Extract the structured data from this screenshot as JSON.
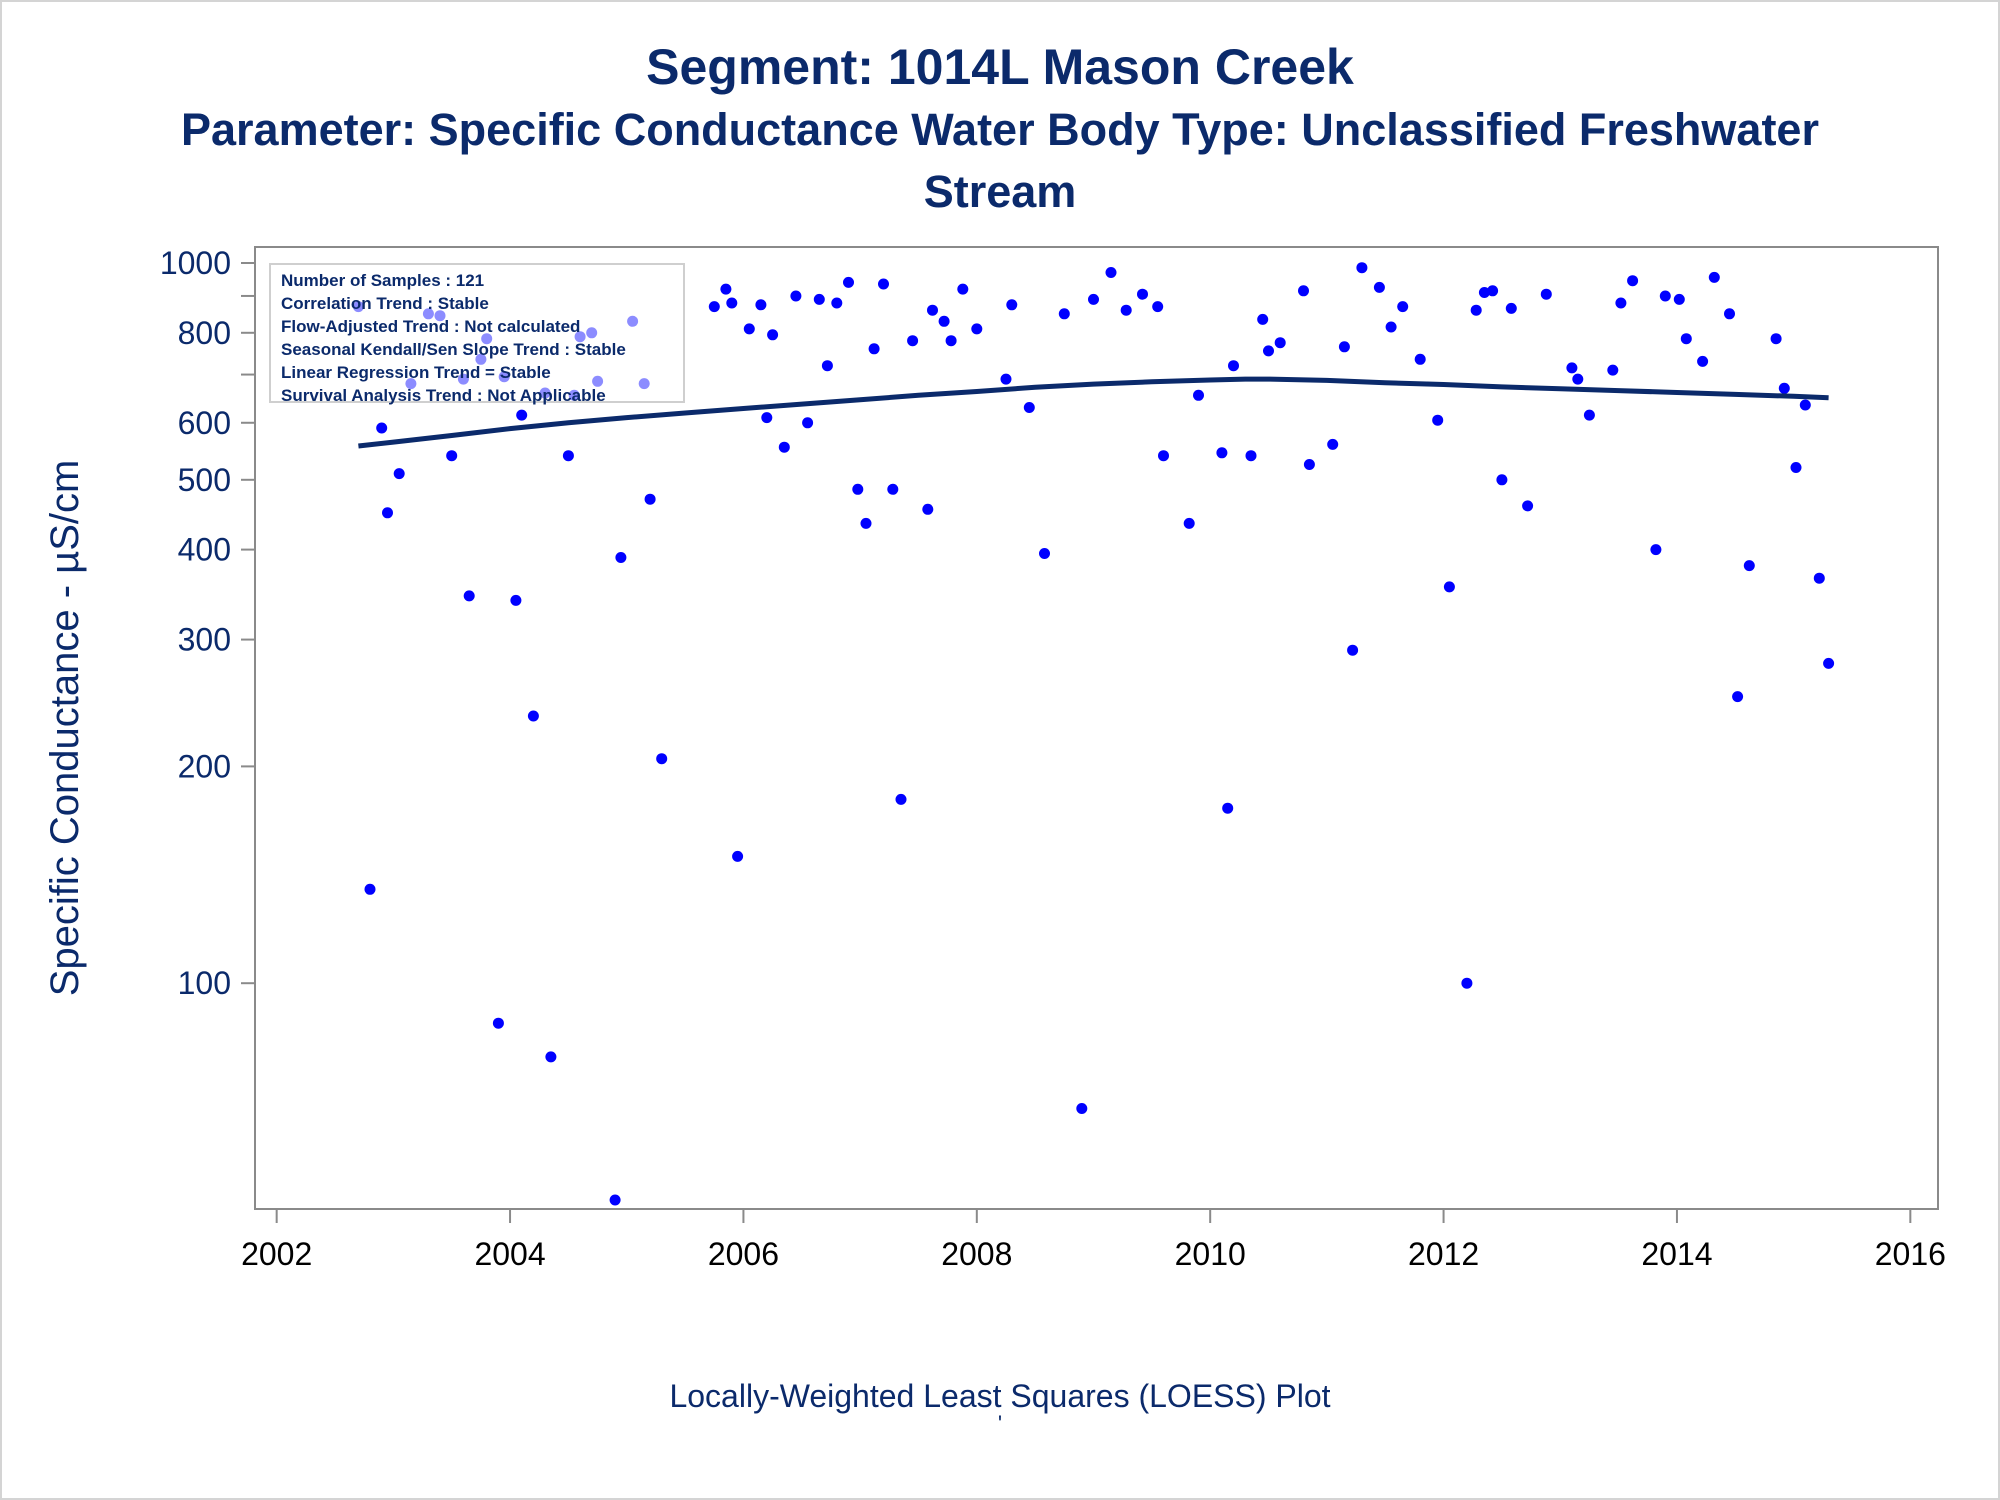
{
  "title": {
    "line1": "Segment: 1014L  Mason Creek",
    "line2": "Parameter: Specific Conductance   Water Body Type: Unclassified Freshwater",
    "line3": "Stream"
  },
  "footnote": "Locally-Weighted Least Squares (LOESS) Plot",
  "footnote_mark": "'",
  "stats_box": {
    "lines": [
      "Number of Samples : 121",
      "Correlation Trend : Stable",
      "Flow-Adjusted Trend : Not calculated",
      "Seasonal Kendall/Sen Slope Trend : Stable",
      "Linear Regression Trend = Stable",
      "Survival Analysis Trend : Not Applicable"
    ]
  },
  "colors": {
    "text": "#0b2a6b",
    "points": "#0000ff",
    "loess": "#0b2a6b",
    "axis": "#8a8a8a"
  },
  "chart_data": {
    "type": "scatter",
    "ylabel": "Specific Conductance -  µS/cm",
    "xlabel": "",
    "y_scale": "log",
    "xlim": [
      2001.9,
      2016.1
    ],
    "ylim": [
      50,
      1000
    ],
    "x_ticks": [
      2002,
      2004,
      2006,
      2008,
      2010,
      2012,
      2014,
      2016
    ],
    "x_tick_labels": [
      "2002",
      "2004",
      "2006",
      "2008",
      "2010",
      "2012",
      "2014",
      "2016"
    ],
    "y_ticks": [
      100,
      200,
      300,
      400,
      500,
      600,
      800,
      1000
    ],
    "y_tick_labels": [
      "100",
      "200",
      "300",
      "400",
      "500",
      "600",
      "800",
      "1000"
    ],
    "y_minor_ticks": [
      700,
      900
    ],
    "grid": false,
    "legend": "none",
    "points": [
      [
        2002.7,
        870
      ],
      [
        2002.8,
        135
      ],
      [
        2002.9,
        590
      ],
      [
        2002.95,
        450
      ],
      [
        2003.05,
        510
      ],
      [
        2003.15,
        680
      ],
      [
        2003.3,
        850
      ],
      [
        2003.4,
        845
      ],
      [
        2003.5,
        540
      ],
      [
        2003.6,
        690
      ],
      [
        2003.65,
        345
      ],
      [
        2003.75,
        735
      ],
      [
        2003.8,
        785
      ],
      [
        2003.9,
        88
      ],
      [
        2003.95,
        695
      ],
      [
        2004.05,
        340
      ],
      [
        2004.1,
        615
      ],
      [
        2004.2,
        235
      ],
      [
        2004.3,
        660
      ],
      [
        2004.35,
        79
      ],
      [
        2004.5,
        540
      ],
      [
        2004.55,
        655
      ],
      [
        2004.6,
        790
      ],
      [
        2004.7,
        800
      ],
      [
        2004.75,
        685
      ],
      [
        2004.9,
        50
      ],
      [
        2004.95,
        390
      ],
      [
        2005.05,
        830
      ],
      [
        2005.15,
        680
      ],
      [
        2005.2,
        470
      ],
      [
        2005.3,
        205
      ],
      [
        2005.75,
        870
      ],
      [
        2005.85,
        920
      ],
      [
        2005.9,
        880
      ],
      [
        2005.95,
        150
      ],
      [
        2006.05,
        810
      ],
      [
        2006.15,
        875
      ],
      [
        2006.2,
        610
      ],
      [
        2006.25,
        795
      ],
      [
        2006.35,
        555
      ],
      [
        2006.45,
        900
      ],
      [
        2006.55,
        600
      ],
      [
        2006.65,
        890
      ],
      [
        2006.72,
        720
      ],
      [
        2006.8,
        880
      ],
      [
        2006.9,
        940
      ],
      [
        2006.98,
        485
      ],
      [
        2007.05,
        435
      ],
      [
        2007.12,
        760
      ],
      [
        2007.2,
        935
      ],
      [
        2007.28,
        485
      ],
      [
        2007.35,
        180
      ],
      [
        2007.45,
        780
      ],
      [
        2007.58,
        455
      ],
      [
        2007.62,
        860
      ],
      [
        2007.72,
        830
      ],
      [
        2007.78,
        780
      ],
      [
        2007.88,
        920
      ],
      [
        2008.0,
        810
      ],
      [
        2008.25,
        690
      ],
      [
        2008.3,
        875
      ],
      [
        2008.45,
        630
      ],
      [
        2008.58,
        395
      ],
      [
        2008.75,
        850
      ],
      [
        2008.9,
        67
      ],
      [
        2009.0,
        890
      ],
      [
        2009.15,
        970
      ],
      [
        2009.28,
        860
      ],
      [
        2009.42,
        905
      ],
      [
        2009.55,
        870
      ],
      [
        2009.6,
        540
      ],
      [
        2009.82,
        435
      ],
      [
        2009.9,
        655
      ],
      [
        2010.1,
        545
      ],
      [
        2010.15,
        175
      ],
      [
        2010.2,
        720
      ],
      [
        2010.35,
        540
      ],
      [
        2010.45,
        835
      ],
      [
        2010.5,
        755
      ],
      [
        2010.6,
        775
      ],
      [
        2010.8,
        915
      ],
      [
        2010.85,
        525
      ],
      [
        2011.05,
        560
      ],
      [
        2011.15,
        765
      ],
      [
        2011.22,
        290
      ],
      [
        2011.3,
        985
      ],
      [
        2011.45,
        925
      ],
      [
        2011.55,
        815
      ],
      [
        2011.65,
        870
      ],
      [
        2011.8,
        735
      ],
      [
        2011.95,
        605
      ],
      [
        2012.05,
        355
      ],
      [
        2012.2,
        100
      ],
      [
        2012.28,
        860
      ],
      [
        2012.35,
        910
      ],
      [
        2012.42,
        915
      ],
      [
        2012.5,
        500
      ],
      [
        2012.58,
        865
      ],
      [
        2012.72,
        460
      ],
      [
        2012.88,
        905
      ],
      [
        2013.1,
        715
      ],
      [
        2013.15,
        690
      ],
      [
        2013.25,
        615
      ],
      [
        2013.45,
        710
      ],
      [
        2013.52,
        880
      ],
      [
        2013.62,
        945
      ],
      [
        2013.82,
        400
      ],
      [
        2013.9,
        900
      ],
      [
        2014.02,
        890
      ],
      [
        2014.08,
        785
      ],
      [
        2014.22,
        730
      ],
      [
        2014.32,
        955
      ],
      [
        2014.45,
        850
      ],
      [
        2014.52,
        250
      ],
      [
        2014.62,
        380
      ],
      [
        2014.85,
        785
      ],
      [
        2014.92,
        670
      ],
      [
        2015.02,
        520
      ],
      [
        2015.1,
        635
      ],
      [
        2015.22,
        365
      ],
      [
        2015.3,
        278
      ]
    ],
    "series": [
      {
        "x": [
          2002.7,
          2003.0,
          2003.5,
          2004.0,
          2004.5,
          2005.0,
          2005.5,
          2006.0,
          2006.5,
          2007.0,
          2007.5,
          2008.0,
          2008.5,
          2009.0,
          2009.5,
          2010.0,
          2010.3,
          2010.5,
          2011.0,
          2011.5,
          2012.0,
          2012.5,
          2013.0,
          2013.5,
          2014.0,
          2014.5,
          2015.0,
          2015.3
        ],
        "values": [
          557,
          564,
          576,
          589,
          600,
          610,
          619,
          628,
          637,
          646,
          655,
          663,
          672,
          679,
          684,
          688,
          690,
          690,
          687,
          682,
          678,
          673,
          669,
          665,
          661,
          657,
          653,
          650
        ]
      }
    ]
  }
}
